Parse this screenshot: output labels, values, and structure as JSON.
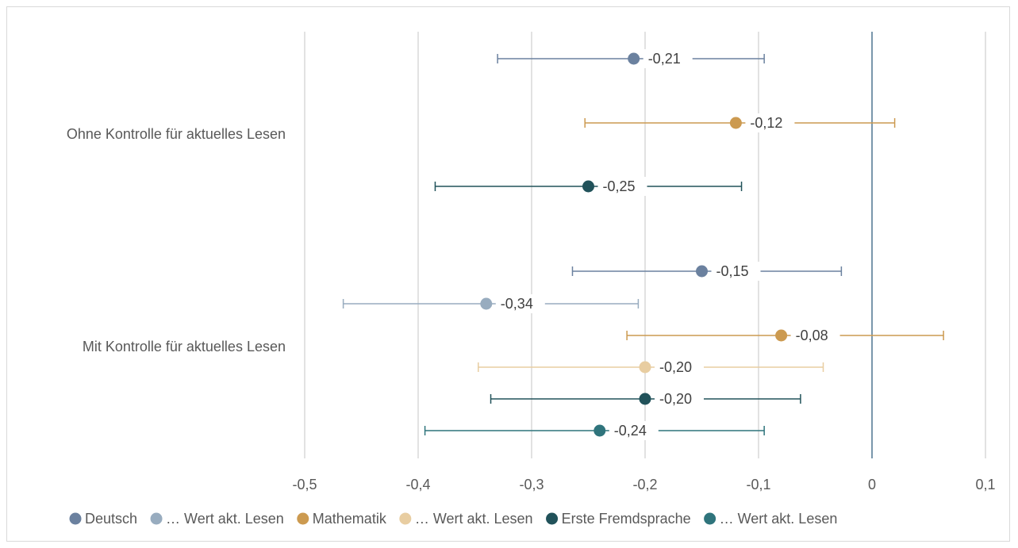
{
  "chart_data": {
    "type": "scatter",
    "title": "",
    "xlabel": "",
    "ylabel": "",
    "xlim": [
      -0.5,
      0.1
    ],
    "x_ticks": [
      -0.5,
      -0.4,
      -0.3,
      -0.2,
      -0.1,
      0,
      0.1
    ],
    "x_tick_labels": [
      "-0,5",
      "-0,4",
      "-0,3",
      "-0,2",
      "-0,1",
      "0",
      "0,1"
    ],
    "grid": "vertical",
    "legend_position": "bottom",
    "categories": [
      "Ohne Kontrolle für aktuelles Lesen",
      "Mit Kontrolle für aktuelles Lesen"
    ],
    "series": [
      {
        "name": "Deutsch",
        "color": "#6b819f"
      },
      {
        "name": "… Wert akt. Lesen",
        "color": "#98acbf"
      },
      {
        "name": "Mathematik",
        "color": "#cc9a50"
      },
      {
        "name": "… Wert akt. Lesen",
        "color": "#e8cda1"
      },
      {
        "name": "Erste Fremdsprache",
        "color": "#21525a"
      },
      {
        "name": "… Wert akt. Lesen",
        "color": "#2f747c"
      }
    ],
    "points": [
      {
        "category": "Ohne Kontrolle für aktuelles Lesen",
        "series": 0,
        "value": -0.21,
        "ci_low": -0.33,
        "ci_high": -0.095,
        "label": "-0,21"
      },
      {
        "category": "Ohne Kontrolle für aktuelles Lesen",
        "series": 2,
        "value": -0.12,
        "ci_low": -0.253,
        "ci_high": 0.02,
        "label": "-0,12"
      },
      {
        "category": "Ohne Kontrolle für aktuelles Lesen",
        "series": 4,
        "value": -0.25,
        "ci_low": -0.385,
        "ci_high": -0.115,
        "label": "-0,25"
      },
      {
        "category": "Mit Kontrolle für aktuelles Lesen",
        "series": 0,
        "value": -0.15,
        "ci_low": -0.264,
        "ci_high": -0.027,
        "label": "-0,15"
      },
      {
        "category": "Mit Kontrolle für aktuelles Lesen",
        "series": 1,
        "value": -0.34,
        "ci_low": -0.466,
        "ci_high": -0.206,
        "label": "-0,34"
      },
      {
        "category": "Mit Kontrolle für aktuelles Lesen",
        "series": 2,
        "value": -0.08,
        "ci_low": -0.216,
        "ci_high": 0.063,
        "label": "-0,08"
      },
      {
        "category": "Mit Kontrolle für aktuelles Lesen",
        "series": 3,
        "value": -0.2,
        "ci_low": -0.347,
        "ci_high": -0.043,
        "label": "-0,20"
      },
      {
        "category": "Mit Kontrolle für aktuelles Lesen",
        "series": 4,
        "value": -0.2,
        "ci_low": -0.336,
        "ci_high": -0.063,
        "label": "-0,20"
      },
      {
        "category": "Mit Kontrolle für aktuelles Lesen",
        "series": 5,
        "value": -0.24,
        "ci_low": -0.394,
        "ci_high": -0.095,
        "label": "-0,24"
      }
    ]
  }
}
